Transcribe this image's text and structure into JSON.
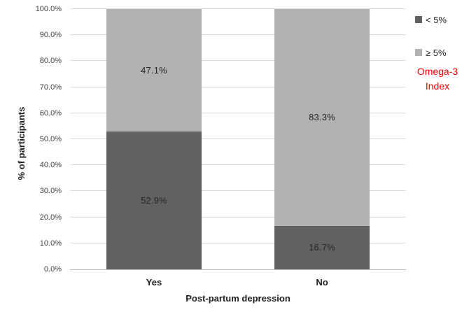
{
  "chart_data": {
    "type": "bar",
    "stacked": true,
    "title": "",
    "xlabel": "Post-partum depression",
    "ylabel": "% of participants",
    "categories": [
      "Yes",
      "No"
    ],
    "series": [
      {
        "name": "< 5%",
        "color": "#616161",
        "values": [
          52.9,
          16.7
        ],
        "labels": [
          "52.9%",
          "16.7%"
        ]
      },
      {
        "name": "≥ 5%",
        "color": "#b1b1b1",
        "values": [
          47.1,
          83.3
        ],
        "labels": [
          "47.1%",
          "83.3%"
        ]
      }
    ],
    "ylim": [
      0,
      100
    ],
    "ytick_step": 10,
    "yticks": [
      "0.0%",
      "10.0%",
      "20.0%",
      "30.0%",
      "40.0%",
      "50.0%",
      "60.0%",
      "70.0%",
      "80.0%",
      "90.0%",
      "100.0%"
    ],
    "grid": true,
    "legend_position": "right"
  },
  "annotation": {
    "lines": [
      "Omega-3",
      "Index"
    ],
    "color": "#ff0000"
  },
  "colors": {
    "gridline": "#d9d9d9",
    "axis_line": "#bfbfbf",
    "background": "#ffffff"
  }
}
